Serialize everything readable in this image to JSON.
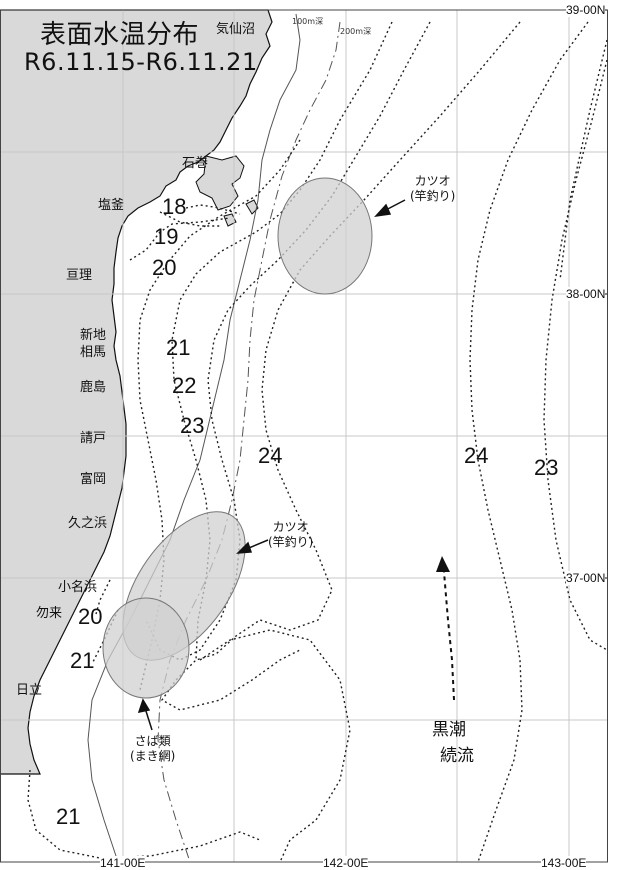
{
  "title": {
    "main": "表面水温分布",
    "period": "R6.11.15-R6.11.21"
  },
  "places": {
    "kesennuma": "気仙沼",
    "ishinomaki": "石巻",
    "shiogama": "塩釜",
    "watari": "亘理",
    "shinchi": "新地",
    "soma": "相馬",
    "kashima": "鹿島",
    "ukedo": "請戸",
    "tomioka": "富岡",
    "hisanohama": "久之浜",
    "onahama": "小名浜",
    "nakoso": "勿来",
    "hitachi": "日立"
  },
  "depth_contours": {
    "d100": "100m深",
    "d200": "200m深"
  },
  "isotherms": {
    "t18": "18",
    "t19": "19",
    "t20_north": "20",
    "t21_north": "21",
    "t22": "22",
    "t23_west": "23",
    "t24_west": "24",
    "t24_east": "24",
    "t23_east": "23",
    "t20_south": "20",
    "t21_south": "21",
    "t21_bottom": "21"
  },
  "lat_labels": {
    "lat39": "39-00N",
    "lat38": "38-00N",
    "lat37": "37-00N"
  },
  "lon_labels": {
    "lon141": "141-00E",
    "lon142": "142-00E",
    "lon143": "143-00E"
  },
  "fishing_grounds": {
    "katsuo_north": {
      "name": "カツオ",
      "method": "(竿釣り)"
    },
    "katsuo_south": {
      "name": "カツオ",
      "method": "(竿釣り)"
    },
    "saba": {
      "name": "さば類",
      "method": "(まき網)"
    }
  },
  "current": {
    "line1": "黒潮",
    "line2": "続流"
  },
  "colors": {
    "land": "#d9d9d9",
    "coast": "#111111",
    "grid": "#c8c8c8",
    "ellipse_fill": "#d0d0d0",
    "isotherm": "#222222"
  },
  "icons": {
    "fishing_ground_arrow": "arrow-icon",
    "current_arrow": "dashed-arrow-icon"
  }
}
